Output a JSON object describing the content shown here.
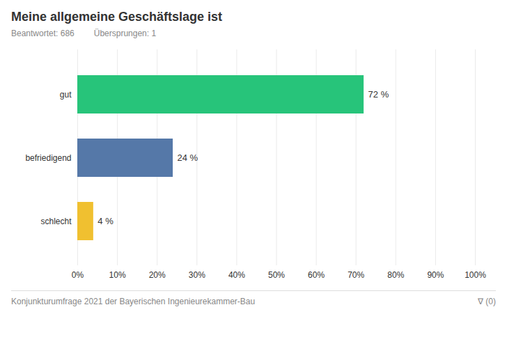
{
  "chart_data": {
    "type": "bar",
    "orientation": "horizontal",
    "title": "Meine allgemeine Geschäftslage ist",
    "subtitle": [
      "Beantwortet: 686",
      "Übersprungen: 1"
    ],
    "annotations": [
      "Konjunkturumfrage 2021 der Bayerischen Ingenieurekammer-Bau",
      "∇ (0)"
    ],
    "categories": [
      "gut",
      "befriedigend",
      "schlecht"
    ],
    "values": [
      72,
      24,
      4
    ],
    "value_labels": [
      "72 %",
      "24 %",
      "4 %"
    ],
    "data_labels": true,
    "colors": [
      "#27c47a",
      "#5578a8",
      "#f0c030"
    ],
    "xlim": [
      0,
      100
    ],
    "xticks": [
      {
        "value": 0,
        "label": "0%"
      },
      {
        "value": 10,
        "label": "10%"
      },
      {
        "value": 20,
        "label": "20%"
      },
      {
        "value": 30,
        "label": "30%"
      },
      {
        "value": 40,
        "label": "40%"
      },
      {
        "value": 50,
        "label": "50%"
      },
      {
        "value": 60,
        "label": "60%"
      },
      {
        "value": 70,
        "label": "70%"
      },
      {
        "value": 80,
        "label": "80%"
      },
      {
        "value": 90,
        "label": "90%"
      },
      {
        "value": 100,
        "label": "100%"
      }
    ],
    "grid": true
  }
}
